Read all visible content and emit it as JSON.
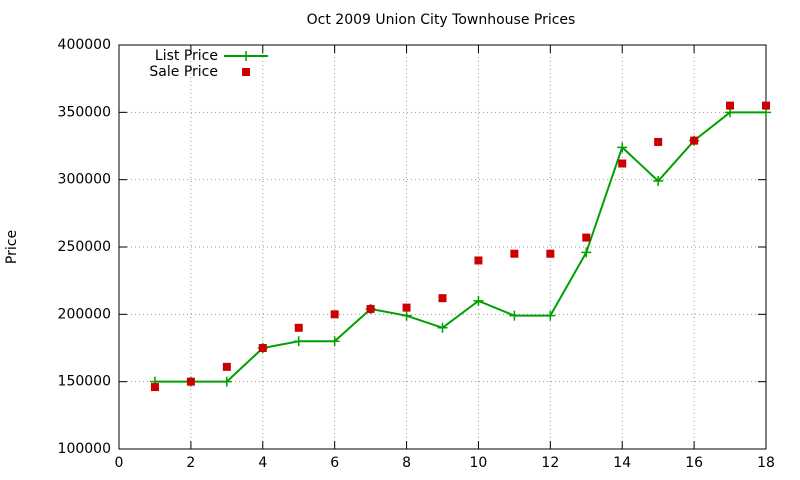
{
  "chart_data": {
    "type": "line",
    "title": "Oct 2009 Union City Townhouse Prices",
    "ylabel": "Price",
    "x": [
      1,
      2,
      3,
      4,
      5,
      6,
      7,
      8,
      9,
      10,
      11,
      12,
      13,
      14,
      15,
      16,
      17,
      18
    ],
    "series": [
      {
        "name": "List Price",
        "color": "#00a000",
        "style": "linespoints",
        "marker": "plus",
        "values": [
          150000,
          150000,
          150000,
          175000,
          180000,
          180000,
          204000,
          199000,
          190000,
          210000,
          199000,
          199000,
          246000,
          324000,
          299000,
          329000,
          350000,
          350000
        ]
      },
      {
        "name": "Sale Price",
        "color": "#cc0000",
        "style": "points",
        "marker": "square",
        "values": [
          146000,
          150000,
          161000,
          175000,
          190000,
          200000,
          204000,
          205000,
          212000,
          240000,
          245000,
          245000,
          257000,
          312000,
          328000,
          329000,
          355000,
          355000
        ]
      }
    ],
    "xlim": [
      0,
      18
    ],
    "xticks": [
      0,
      2,
      4,
      6,
      8,
      10,
      12,
      14,
      16,
      18
    ],
    "ylim": [
      100000,
      400000
    ],
    "yticks": [
      100000,
      150000,
      200000,
      250000,
      300000,
      350000,
      400000
    ],
    "grid": true,
    "legend": "top-left"
  }
}
